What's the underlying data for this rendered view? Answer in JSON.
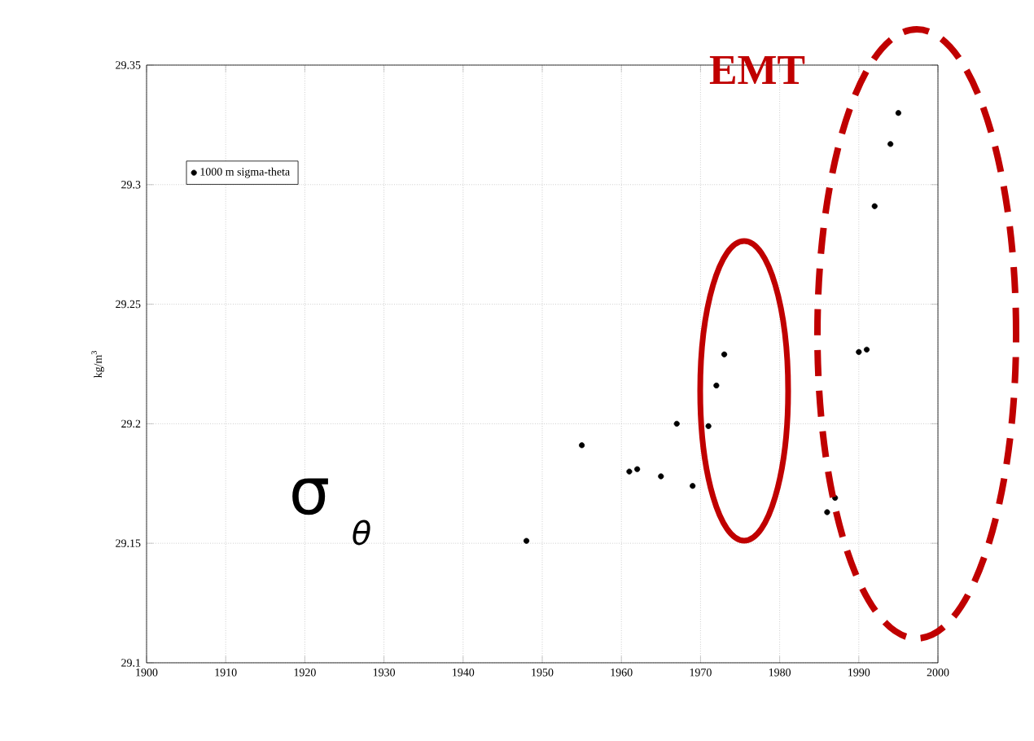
{
  "chart_data": {
    "type": "scatter",
    "ylabel": "kg/m$^{3}$",
    "annotations": [
      "EMT",
      "σ",
      "θ"
    ],
    "x": [
      1948,
      1955,
      1961,
      1962,
      1965,
      1967,
      1969,
      1971,
      1972,
      1973,
      1986,
      1987,
      1990,
      1991,
      1992,
      1994,
      1995
    ],
    "series": [
      {
        "name": "1000 m sigma-theta",
        "color": "#000000",
        "values": [
          29.151,
          29.191,
          29.18,
          29.181,
          29.178,
          29.2,
          29.174,
          29.199,
          29.216,
          29.229,
          29.163,
          29.169,
          29.23,
          29.231,
          29.291,
          29.317,
          29.33
        ]
      }
    ],
    "xlim": [
      1900,
      2000
    ],
    "ylim": [
      29.1,
      29.35
    ],
    "xticks": [
      1900,
      1910,
      1920,
      1930,
      1940,
      1950,
      1960,
      1970,
      1980,
      1990,
      2000
    ],
    "yticks": [
      29.1,
      29.15,
      29.2,
      29.25,
      29.3,
      29.35
    ],
    "grid": true,
    "legend": "top left",
    "marker": "circle"
  }
}
